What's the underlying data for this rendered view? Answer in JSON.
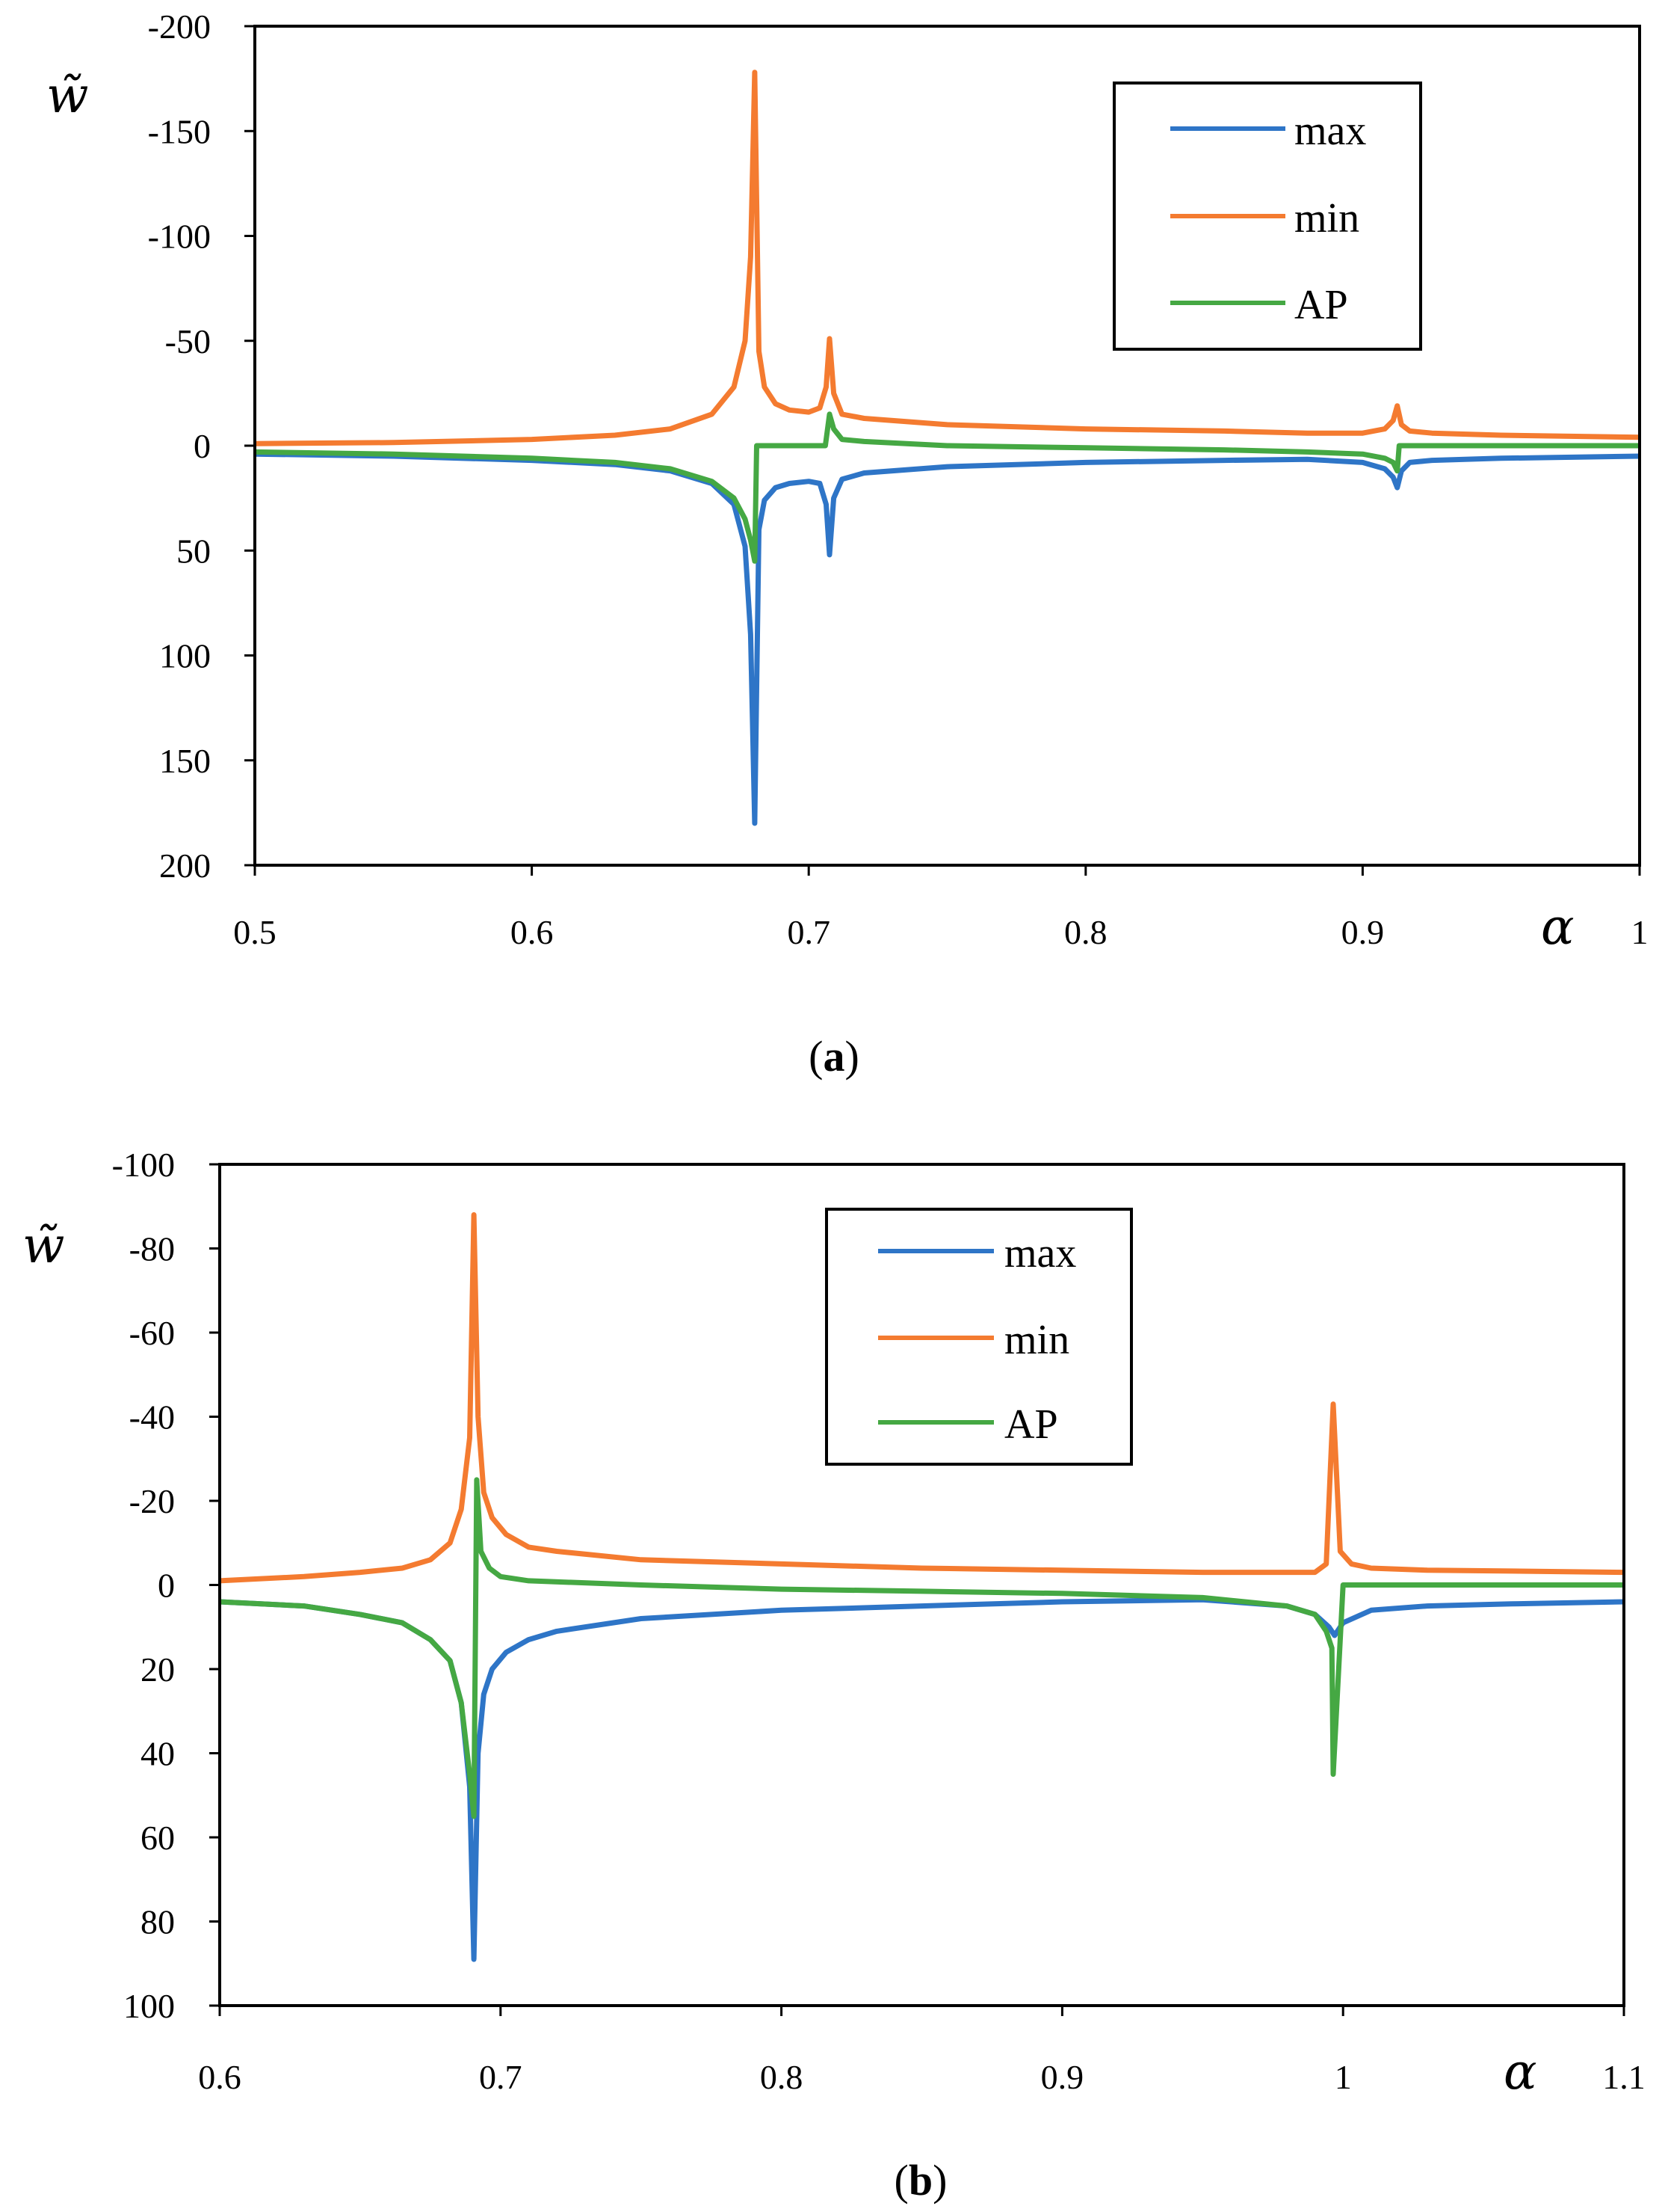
{
  "colors": {
    "max": "#2e75c7",
    "min": "#f47b30",
    "AP": "#45a843",
    "axis": "#000000"
  },
  "chart_data": [
    {
      "id": "a",
      "type": "line",
      "caption": {
        "open": "(",
        "letter": "a",
        "close": ")"
      },
      "xlabel": "α",
      "ylabel": "w̃",
      "xlim": [
        0.5,
        1.0
      ],
      "ylim": [
        -200,
        200
      ],
      "y_inverted": true,
      "x_ticks": [
        {
          "value": 0.5,
          "label": "0.5"
        },
        {
          "value": 0.6,
          "label": "0.6"
        },
        {
          "value": 0.7,
          "label": "0.7"
        },
        {
          "value": 0.8,
          "label": "0.8"
        },
        {
          "value": 0.9,
          "label": "0.9"
        },
        {
          "value": 1.0,
          "label": "1"
        }
      ],
      "y_ticks": [
        {
          "value": -200,
          "label": "-200"
        },
        {
          "value": -150,
          "label": "-150"
        },
        {
          "value": -100,
          "label": "-100"
        },
        {
          "value": -50,
          "label": "-50"
        },
        {
          "value": 0,
          "label": "0"
        },
        {
          "value": 50,
          "label": "50"
        },
        {
          "value": 100,
          "label": "100"
        },
        {
          "value": 150,
          "label": "150"
        },
        {
          "value": 200,
          "label": "200"
        }
      ],
      "legend": {
        "position": "top-right",
        "entries": [
          "max",
          "min",
          "AP"
        ]
      },
      "series": [
        {
          "name": "max",
          "x": [
            0.5,
            0.55,
            0.6,
            0.63,
            0.65,
            0.665,
            0.673,
            0.677,
            0.679,
            0.6805,
            0.682,
            0.684,
            0.688,
            0.693,
            0.7,
            0.704,
            0.7063,
            0.7075,
            0.709,
            0.712,
            0.72,
            0.75,
            0.8,
            0.85,
            0.88,
            0.9,
            0.908,
            0.911,
            0.9125,
            0.914,
            0.917,
            0.925,
            0.95,
            1.0
          ],
          "y": [
            4,
            5,
            7,
            9,
            12,
            18,
            28,
            48,
            90,
            180,
            40,
            26,
            20,
            18,
            17,
            18,
            28,
            52,
            25,
            16,
            13,
            10,
            8,
            7,
            6.5,
            8,
            11,
            15,
            20,
            12,
            8,
            7,
            6,
            5
          ]
        },
        {
          "name": "min",
          "x": [
            0.5,
            0.55,
            0.6,
            0.63,
            0.65,
            0.665,
            0.673,
            0.677,
            0.679,
            0.6805,
            0.682,
            0.684,
            0.688,
            0.693,
            0.7,
            0.704,
            0.7063,
            0.7075,
            0.709,
            0.712,
            0.72,
            0.75,
            0.8,
            0.85,
            0.88,
            0.9,
            0.908,
            0.911,
            0.9125,
            0.914,
            0.917,
            0.925,
            0.95,
            1.0
          ],
          "y": [
            -1,
            -1.5,
            -3,
            -5,
            -8,
            -15,
            -28,
            -50,
            -90,
            -178,
            -45,
            -28,
            -20,
            -17,
            -16,
            -18,
            -28,
            -51,
            -25,
            -15,
            -13,
            -10,
            -8,
            -7,
            -6,
            -6,
            -8,
            -12,
            -19,
            -10,
            -7,
            -6,
            -5,
            -4
          ]
        },
        {
          "name": "AP",
          "x": [
            0.5,
            0.55,
            0.6,
            0.63,
            0.65,
            0.665,
            0.673,
            0.677,
            0.679,
            0.6805,
            0.6812,
            0.69,
            0.7,
            0.706,
            0.7068,
            0.7075,
            0.709,
            0.712,
            0.72,
            0.75,
            0.8,
            0.85,
            0.88,
            0.9,
            0.908,
            0.911,
            0.9125,
            0.9132,
            0.92,
            0.95,
            1.0
          ],
          "y": [
            3,
            4,
            6,
            8,
            11,
            17,
            25,
            35,
            45,
            55,
            0,
            0,
            0,
            0,
            -8,
            -15,
            -8,
            -3,
            -2,
            0,
            1,
            2,
            3,
            4,
            6,
            8,
            12,
            0,
            0,
            0,
            0
          ]
        }
      ]
    },
    {
      "id": "b",
      "type": "line",
      "caption": {
        "open": "(",
        "letter": "b",
        "close": ")"
      },
      "xlabel": "α",
      "ylabel": "w̃",
      "xlim": [
        0.6,
        1.1
      ],
      "ylim": [
        -100,
        100
      ],
      "y_inverted": true,
      "x_ticks": [
        {
          "value": 0.6,
          "label": "0.6"
        },
        {
          "value": 0.7,
          "label": "0.7"
        },
        {
          "value": 0.8,
          "label": "0.8"
        },
        {
          "value": 0.9,
          "label": "0.9"
        },
        {
          "value": 1.0,
          "label": "1"
        },
        {
          "value": 1.1,
          "label": "1.1"
        }
      ],
      "y_ticks": [
        {
          "value": -100,
          "label": "-100"
        },
        {
          "value": -80,
          "label": "-80"
        },
        {
          "value": -60,
          "label": "-60"
        },
        {
          "value": -40,
          "label": "-40"
        },
        {
          "value": -20,
          "label": "-20"
        },
        {
          "value": 0,
          "label": "0"
        },
        {
          "value": 20,
          "label": "20"
        },
        {
          "value": 40,
          "label": "40"
        },
        {
          "value": 60,
          "label": "60"
        },
        {
          "value": 80,
          "label": "80"
        },
        {
          "value": 100,
          "label": "100"
        }
      ],
      "legend": {
        "position": "top-center",
        "entries": [
          "max",
          "min",
          "AP"
        ]
      },
      "series": [
        {
          "name": "max",
          "x": [
            0.6,
            0.63,
            0.65,
            0.665,
            0.675,
            0.682,
            0.686,
            0.689,
            0.6905,
            0.692,
            0.694,
            0.697,
            0.702,
            0.71,
            0.72,
            0.75,
            0.8,
            0.85,
            0.9,
            0.95,
            0.98,
            0.99,
            0.995,
            0.997,
            1.0,
            1.01,
            1.03,
            1.06,
            1.1
          ],
          "y": [
            4,
            5,
            7,
            9,
            13,
            18,
            28,
            48,
            89,
            40,
            26,
            20,
            16,
            13,
            11,
            8,
            6,
            5,
            4,
            3.5,
            5,
            7,
            10,
            12,
            9,
            6,
            5,
            4.5,
            4
          ]
        },
        {
          "name": "min",
          "x": [
            0.6,
            0.63,
            0.65,
            0.665,
            0.675,
            0.682,
            0.686,
            0.689,
            0.6905,
            0.692,
            0.694,
            0.697,
            0.702,
            0.71,
            0.72,
            0.75,
            0.8,
            0.85,
            0.9,
            0.95,
            0.98,
            0.99,
            0.994,
            0.9965,
            0.999,
            1.003,
            1.01,
            1.03,
            1.06,
            1.1
          ],
          "y": [
            -1,
            -2,
            -3,
            -4,
            -6,
            -10,
            -18,
            -35,
            -88,
            -40,
            -22,
            -16,
            -12,
            -9,
            -8,
            -6,
            -5,
            -4,
            -3.5,
            -3,
            -3,
            -3,
            -5,
            -43,
            -8,
            -5,
            -4,
            -3.5,
            -3.3,
            -3
          ]
        },
        {
          "name": "AP",
          "x": [
            0.6,
            0.63,
            0.65,
            0.665,
            0.675,
            0.682,
            0.686,
            0.689,
            0.6905,
            0.6915,
            0.693,
            0.696,
            0.7,
            0.71,
            0.75,
            0.8,
            0.85,
            0.9,
            0.95,
            0.98,
            0.99,
            0.994,
            0.996,
            0.9965,
            1.0,
            1.05,
            1.1
          ],
          "y": [
            4,
            5,
            7,
            9,
            13,
            18,
            28,
            45,
            55,
            -25,
            -8,
            -4,
            -2,
            -1,
            0,
            1,
            1.5,
            2,
            3,
            5,
            7,
            11,
            15,
            45,
            0,
            0,
            0
          ]
        }
      ]
    }
  ]
}
